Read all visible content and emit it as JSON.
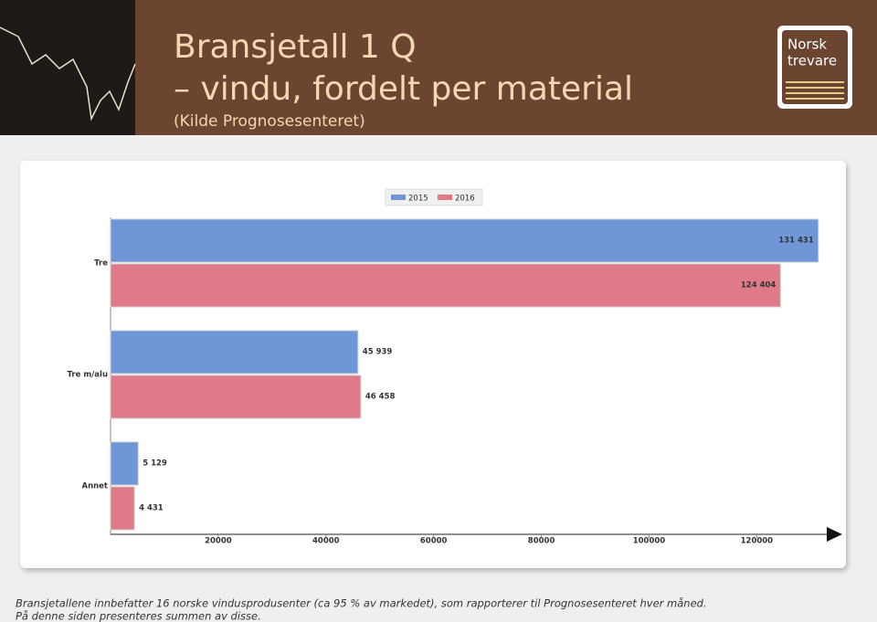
{
  "header": {
    "title_line1": "Bransjetall 1 Q",
    "title_line2": "– vindu, fordelt per material",
    "source": "(Kilde Prognosesenteret)",
    "logo_line1": "Norsk",
    "logo_line2": "trevare"
  },
  "chart_data": {
    "type": "hbar",
    "categories": [
      "Tre",
      "Tre m/alu",
      "Annet"
    ],
    "series": [
      {
        "name": "2015",
        "color": "#6f97d8",
        "values": [
          131431,
          45939,
          5129
        ],
        "value_labels": [
          "131 431",
          "45 939",
          "5 129"
        ]
      },
      {
        "name": "2016",
        "color": "#e07a88",
        "values": [
          124404,
          46458,
          4431
        ],
        "value_labels": [
          "124 404",
          "46 458",
          "4 431"
        ]
      }
    ],
    "xlim": [
      0,
      133000
    ],
    "xticks": [
      20000,
      40000,
      60000,
      80000,
      100000,
      120000
    ]
  },
  "footer": {
    "line1": "Bransjetallene innbefatter 16 norske vindusprodusenter (ca 95 % av markedet), som rapporterer til Prognosesenteret hver måned.",
    "line2": "På denne siden presenteres summen av disse."
  }
}
